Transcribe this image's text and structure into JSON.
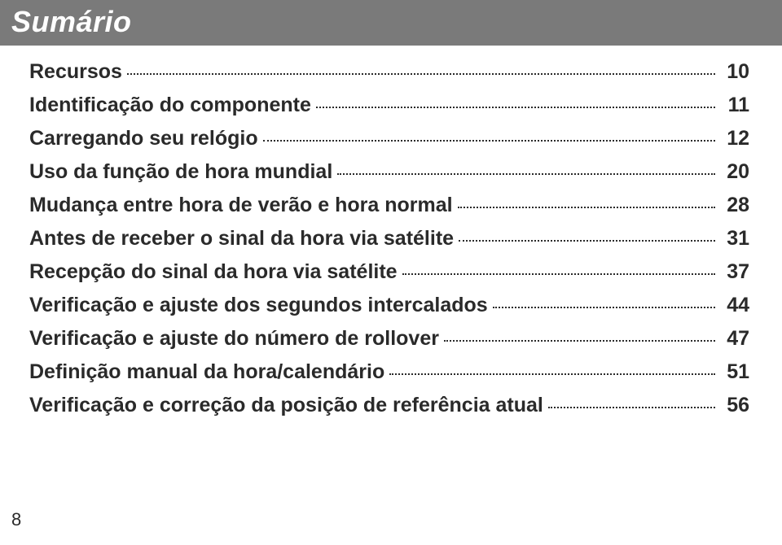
{
  "header": {
    "title": "Sumário"
  },
  "toc": {
    "items": [
      {
        "label": "Recursos",
        "page": "10"
      },
      {
        "label": "Identificação do componente",
        "page": "11"
      },
      {
        "label": "Carregando seu relógio",
        "page": "12"
      },
      {
        "label": "Uso da função de hora mundial",
        "page": "20"
      },
      {
        "label": "Mudança entre hora de verão e hora normal",
        "page": "28"
      },
      {
        "label": "Antes de receber o sinal da hora via satélite",
        "page": "31"
      },
      {
        "label": "Recepção do sinal da hora via satélite",
        "page": "37"
      },
      {
        "label": "Verificação e ajuste dos segundos intercalados",
        "page": "44"
      },
      {
        "label": "Verificação e ajuste do número de rollover",
        "page": "47"
      },
      {
        "label": "Definição manual da hora/calendário",
        "page": "51"
      },
      {
        "label": "Verificação e correção da posição de referência atual",
        "page": "56"
      }
    ]
  },
  "footer": {
    "page_number": "8"
  },
  "style": {
    "header_bg": "#7a7a7a",
    "header_fg": "#ffffff",
    "body_bg": "#ffffff",
    "text_color": "#2a2a2a",
    "header_fontsize": 36,
    "row_fontsize": 25,
    "pagenum_fontsize": 22
  }
}
